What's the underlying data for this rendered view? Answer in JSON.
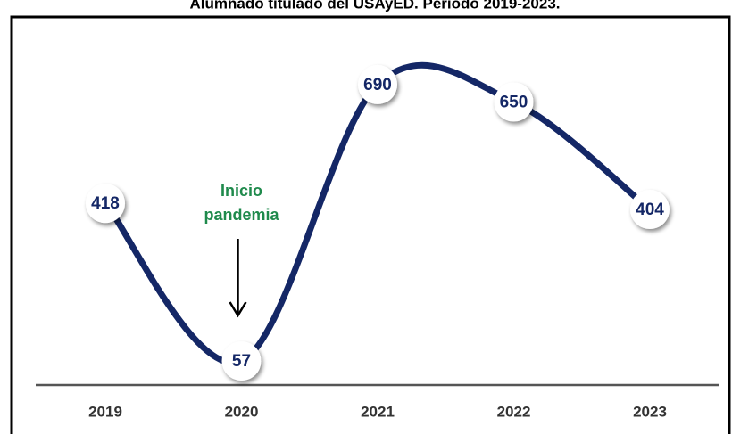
{
  "chart_data": {
    "type": "line",
    "title": "Alumnado titulado del USAyED. Período 2019-2023.",
    "categories": [
      "2019",
      "2020",
      "2021",
      "2022",
      "2023"
    ],
    "values": [
      418,
      57,
      690,
      650,
      404
    ],
    "color": "#142766",
    "annotation": {
      "category": "2020",
      "lines": [
        "Inicio",
        "pandemia"
      ],
      "color": "#1f8a4c"
    }
  }
}
